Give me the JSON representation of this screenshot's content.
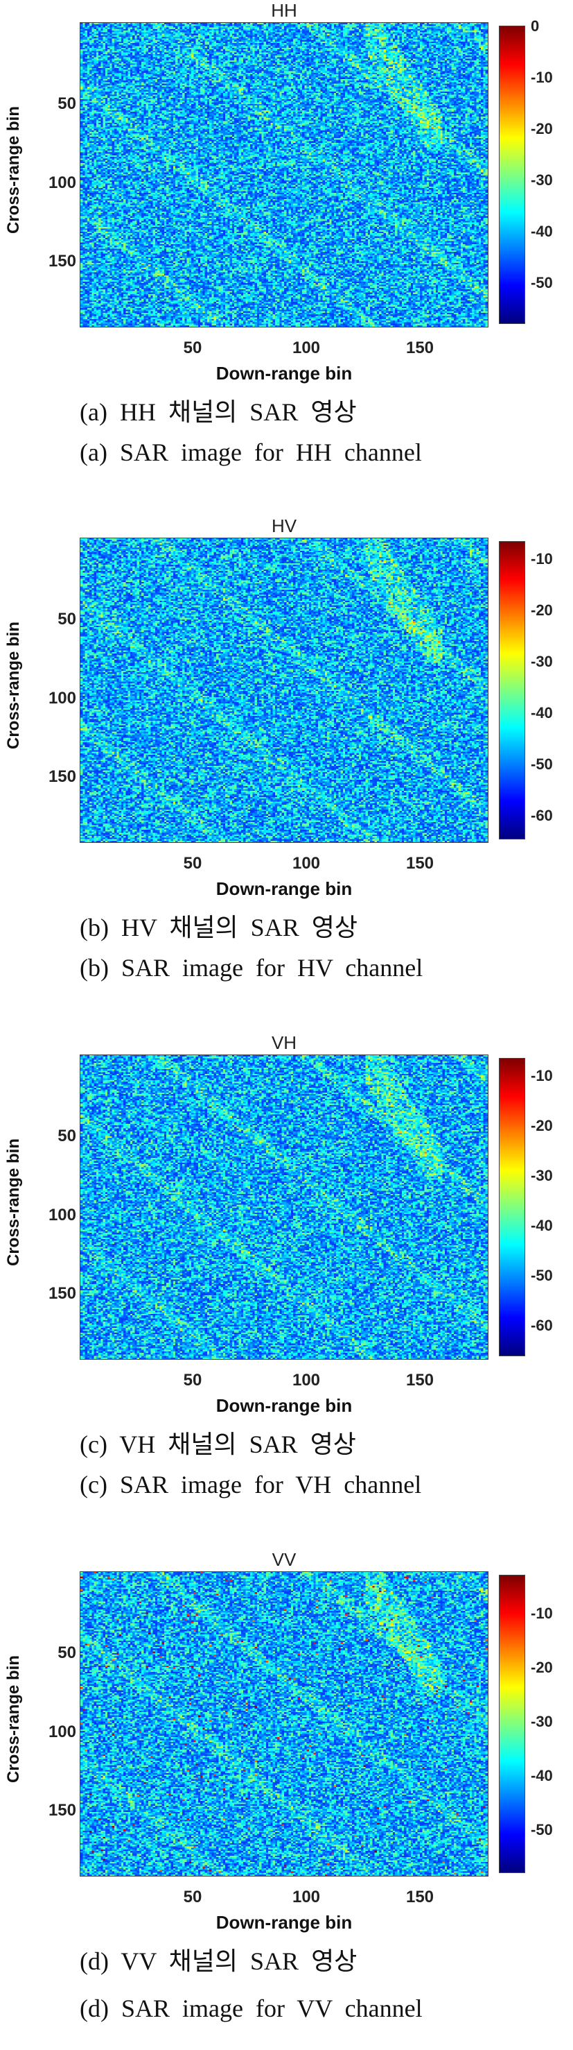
{
  "chart_data": [
    {
      "type": "heatmap",
      "title": "HH",
      "xlabel": "Down-range bin",
      "ylabel": "Cross-range bin",
      "x_ticks": [
        "50",
        "100",
        "150"
      ],
      "y_ticks": [
        "50",
        "100",
        "150"
      ],
      "xlim": [
        1,
        180
      ],
      "ylim": [
        1,
        195
      ],
      "colorbar_ticks": [
        "0",
        "-10",
        "-20",
        "-30",
        "-40",
        "-50"
      ],
      "clim": [
        -58,
        0
      ],
      "colormap": "jet",
      "caption_ko": "(a)  HH  채널의  SAR  영상",
      "caption_en": "(a)  SAR  image  for  HH  channel"
    },
    {
      "type": "heatmap",
      "title": "HV",
      "xlabel": "Down-range bin",
      "ylabel": "Cross-range bin",
      "x_ticks": [
        "50",
        "100",
        "150"
      ],
      "y_ticks": [
        "50",
        "100",
        "150"
      ],
      "xlim": [
        1,
        180
      ],
      "ylim": [
        1,
        195
      ],
      "colorbar_ticks": [
        "-10",
        "-20",
        "-30",
        "-40",
        "-50",
        "-60"
      ],
      "clim": [
        -63,
        -5
      ],
      "colormap": "jet",
      "caption_ko": "(b)  HV  채널의  SAR  영상",
      "caption_en": "(b)  SAR  image  for  HV  channel"
    },
    {
      "type": "heatmap",
      "title": "VH",
      "xlabel": "Down-range bin",
      "ylabel": "Cross-range bin",
      "x_ticks": [
        "50",
        "100",
        "150"
      ],
      "y_ticks": [
        "50",
        "100",
        "150"
      ],
      "xlim": [
        1,
        180
      ],
      "ylim": [
        1,
        195
      ],
      "colorbar_ticks": [
        "-10",
        "-20",
        "-30",
        "-40",
        "-50",
        "-60"
      ],
      "clim": [
        -68,
        -6
      ],
      "colormap": "jet",
      "caption_ko": "(c)  VH  채널의  SAR  영상",
      "caption_en": "(c)  SAR  image  for  VH  channel"
    },
    {
      "type": "heatmap",
      "title": "VV",
      "xlabel": "Down-range bin",
      "ylabel": "Cross-range bin",
      "x_ticks": [
        "50",
        "100",
        "150"
      ],
      "y_ticks": [
        "50",
        "100",
        "150"
      ],
      "xlim": [
        1,
        180
      ],
      "ylim": [
        1,
        195
      ],
      "colorbar_ticks": [
        "-10",
        "-20",
        "-30",
        "-40",
        "-50"
      ],
      "clim": [
        -57,
        -2
      ],
      "colormap": "jet",
      "caption_ko": "(d)  VV  채널의  SAR  영상",
      "caption_en": "(d)  SAR  image  for  VV  channel"
    }
  ]
}
